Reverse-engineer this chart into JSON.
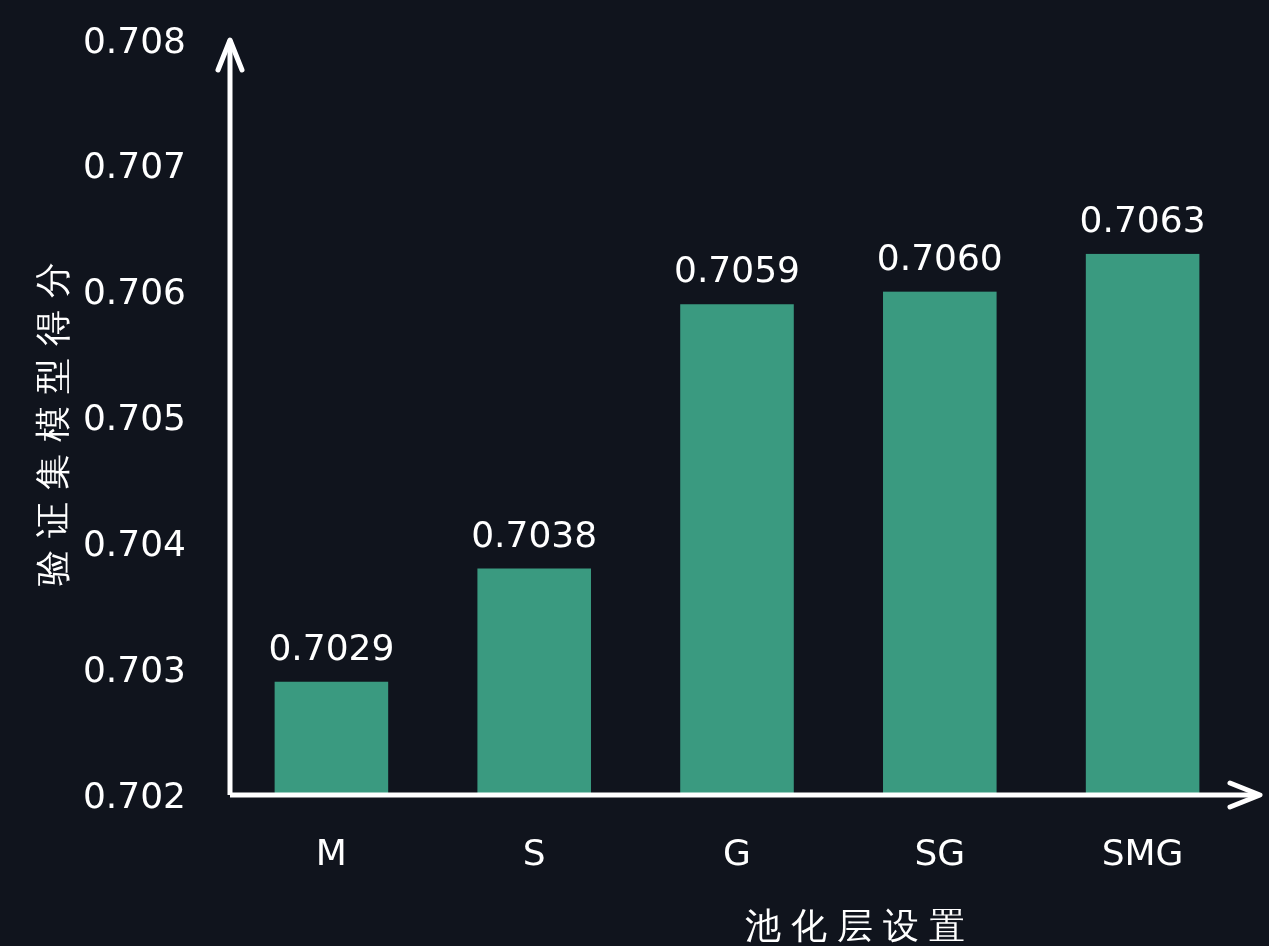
{
  "chart_data": {
    "type": "bar",
    "xlabel": "池化层设置",
    "ylabel": "验证集模型得分",
    "categories": [
      "M",
      "S",
      "G",
      "SG",
      "SMG"
    ],
    "values": [
      0.7029,
      0.7038,
      0.7059,
      0.706,
      0.7063
    ],
    "value_labels": [
      "0.7029",
      "0.7038",
      "0.7059",
      "0.7060",
      "0.7063"
    ],
    "color": "#3a9a80",
    "ylim": [
      0.702,
      0.708
    ],
    "yticks": [
      0.702,
      0.703,
      0.704,
      0.705,
      0.706,
      0.707,
      0.708
    ]
  }
}
